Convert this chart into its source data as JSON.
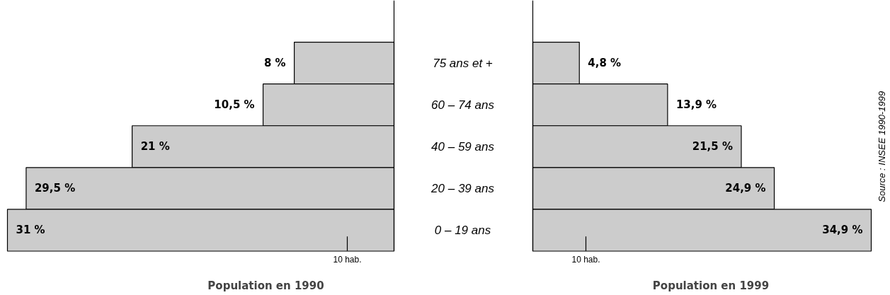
{
  "chart_data": [
    {
      "type": "bar",
      "orientation": "horizontal",
      "title": "Population en 1990",
      "categories": [
        "75 ans et +",
        "60 – 74 ans",
        "40 – 59 ans",
        "20 – 39 ans",
        "0 – 19 ans"
      ],
      "values": [
        8,
        10.5,
        21,
        29.5,
        31
      ],
      "value_labels": [
        "8 %",
        "10,5 %",
        "21 %",
        "29,5 %",
        "31 %"
      ],
      "color": "#cccccc",
      "annotations": [
        "10 hab."
      ]
    },
    {
      "type": "bar",
      "orientation": "horizontal",
      "title": "Population en 1999",
      "categories": [
        null,
        null,
        null,
        null,
        null
      ],
      "values": [
        4.8,
        13.9,
        21.5,
        24.9,
        34.9
      ],
      "value_labels": [
        "4,8 %",
        "13,9 %",
        "21,5 %",
        "24,9 %",
        "34,9 %"
      ],
      "color": "#cccccc",
      "annotations": [
        "10 hab.",
        "Source : INSEE 1990-1999"
      ]
    }
  ]
}
